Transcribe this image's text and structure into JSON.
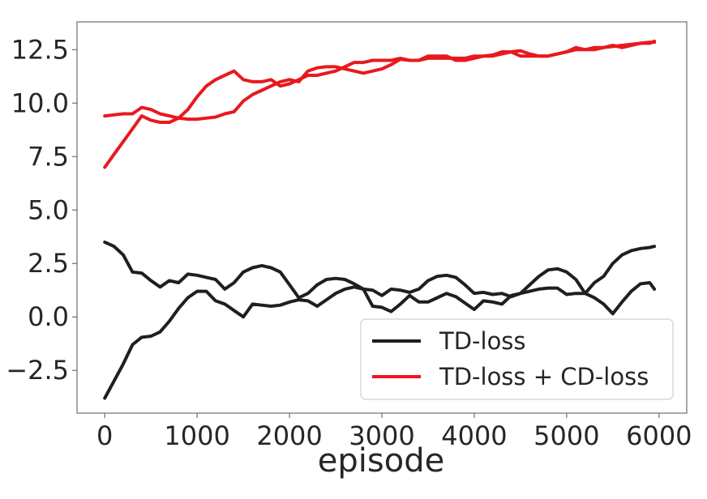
{
  "chart_data": {
    "type": "line",
    "title": "",
    "xlabel": "episode",
    "ylabel": "",
    "xlim": [
      -300,
      6300
    ],
    "ylim": [
      -4.5,
      13.8
    ],
    "xticks": [
      0,
      1000,
      2000,
      3000,
      4000,
      5000,
      6000
    ],
    "xtick_labels": [
      "0",
      "1000",
      "2000",
      "3000",
      "4000",
      "5000",
      "6000"
    ],
    "yticks": [
      -2.5,
      0.0,
      2.5,
      5.0,
      7.5,
      10.0,
      12.5
    ],
    "ytick_labels": [
      "−2.5",
      "0.0",
      "2.5",
      "5.0",
      "7.5",
      "10.0",
      "12.5"
    ],
    "grid": false,
    "legend": "bottom-right",
    "series": [
      {
        "name": "TD-loss",
        "color": "#1f1f1f",
        "x": [
          0,
          100,
          200,
          300,
          400,
          500,
          600,
          700,
          800,
          900,
          1000,
          1100,
          1200,
          1300,
          1400,
          1500,
          1600,
          1700,
          1800,
          1900,
          2000,
          2100,
          2200,
          2300,
          2400,
          2500,
          2600,
          2700,
          2800,
          2900,
          3000,
          3100,
          3200,
          3300,
          3400,
          3500,
          3600,
          3700,
          3800,
          3900,
          4000,
          4100,
          4200,
          4300,
          4400,
          4500,
          4600,
          4700,
          4800,
          4900,
          5000,
          5100,
          5200,
          5300,
          5400,
          5500,
          5600,
          5700,
          5800,
          5900,
          5950
        ],
        "y": [
          3.5,
          3.3,
          2.9,
          2.1,
          2.05,
          1.7,
          1.4,
          1.7,
          1.6,
          2.0,
          1.95,
          1.85,
          1.75,
          1.3,
          1.6,
          2.1,
          2.3,
          2.4,
          2.3,
          2.1,
          1.5,
          0.9,
          1.1,
          1.5,
          1.75,
          1.8,
          1.75,
          1.55,
          1.3,
          1.25,
          1.0,
          1.3,
          1.25,
          1.15,
          1.3,
          1.7,
          1.9,
          1.95,
          1.85,
          1.5,
          1.1,
          1.15,
          1.05,
          1.1,
          0.95,
          1.1,
          1.5,
          1.9,
          2.2,
          2.25,
          2.1,
          1.75,
          1.1,
          0.9,
          0.6,
          0.15,
          0.7,
          1.2,
          1.55,
          1.6,
          1.3
        ]
      },
      {
        "name": "",
        "color": "#1f1f1f",
        "x": [
          0,
          100,
          200,
          300,
          400,
          500,
          600,
          700,
          800,
          900,
          1000,
          1100,
          1200,
          1300,
          1400,
          1500,
          1600,
          1700,
          1800,
          1900,
          2000,
          2100,
          2200,
          2300,
          2400,
          2500,
          2600,
          2700,
          2800,
          2900,
          3000,
          3100,
          3200,
          3300,
          3400,
          3500,
          3600,
          3700,
          3800,
          3900,
          4000,
          4100,
          4200,
          4300,
          4400,
          4500,
          4600,
          4700,
          4800,
          4900,
          5000,
          5100,
          5200,
          5300,
          5400,
          5500,
          5600,
          5700,
          5800,
          5900,
          5950
        ],
        "y": [
          -3.8,
          -3.0,
          -2.2,
          -1.3,
          -0.95,
          -0.9,
          -0.7,
          -0.2,
          0.4,
          0.9,
          1.2,
          1.2,
          0.75,
          0.6,
          0.3,
          0.0,
          0.6,
          0.55,
          0.5,
          0.55,
          0.7,
          0.8,
          0.75,
          0.5,
          0.8,
          1.1,
          1.3,
          1.4,
          1.3,
          0.5,
          0.45,
          0.25,
          0.6,
          1.0,
          0.7,
          0.7,
          0.9,
          1.1,
          0.95,
          0.65,
          0.35,
          0.75,
          0.7,
          0.6,
          1.0,
          1.1,
          1.2,
          1.3,
          1.35,
          1.35,
          1.05,
          1.1,
          1.1,
          1.6,
          1.9,
          2.5,
          2.9,
          3.1,
          3.2,
          3.25,
          3.3
        ]
      },
      {
        "name": "TD-loss + CD-loss",
        "color": "#e8191e",
        "x": [
          0,
          100,
          200,
          300,
          400,
          500,
          600,
          700,
          800,
          900,
          1000,
          1100,
          1200,
          1300,
          1400,
          1500,
          1600,
          1700,
          1800,
          1900,
          2000,
          2100,
          2200,
          2300,
          2400,
          2500,
          2600,
          2700,
          2800,
          2900,
          3000,
          3100,
          3200,
          3300,
          3400,
          3500,
          3600,
          3700,
          3800,
          3900,
          4000,
          4100,
          4200,
          4300,
          4400,
          4500,
          4600,
          4700,
          4800,
          4900,
          5000,
          5100,
          5200,
          5300,
          5400,
          5500,
          5600,
          5700,
          5800,
          5900,
          5950
        ],
        "y": [
          7.0,
          7.6,
          8.2,
          8.8,
          9.4,
          9.2,
          9.1,
          9.1,
          9.3,
          9.7,
          10.3,
          10.8,
          11.1,
          11.3,
          11.5,
          11.1,
          11.0,
          11.0,
          11.1,
          10.8,
          10.9,
          11.1,
          11.3,
          11.3,
          11.4,
          11.5,
          11.7,
          11.9,
          11.9,
          12.0,
          12.0,
          12.0,
          12.1,
          12.0,
          12.0,
          12.2,
          12.2,
          12.2,
          12.0,
          12.0,
          12.1,
          12.2,
          12.2,
          12.3,
          12.4,
          12.2,
          12.2,
          12.2,
          12.2,
          12.3,
          12.4,
          12.6,
          12.5,
          12.5,
          12.6,
          12.7,
          12.6,
          12.7,
          12.8,
          12.8,
          12.9
        ]
      },
      {
        "name": "",
        "color": "#e8191e",
        "x": [
          0,
          100,
          200,
          300,
          400,
          500,
          600,
          700,
          800,
          900,
          1000,
          1100,
          1200,
          1300,
          1400,
          1500,
          1600,
          1700,
          1800,
          1900,
          2000,
          2100,
          2200,
          2300,
          2400,
          2500,
          2600,
          2700,
          2800,
          2900,
          3000,
          3100,
          3200,
          3300,
          3400,
          3500,
          3600,
          3700,
          3800,
          3900,
          4000,
          4100,
          4200,
          4300,
          4400,
          4500,
          4600,
          4700,
          4800,
          4900,
          5000,
          5100,
          5200,
          5300,
          5400,
          5500,
          5600,
          5700,
          5800,
          5900,
          5950
        ],
        "y": [
          9.4,
          9.45,
          9.5,
          9.5,
          9.8,
          9.7,
          9.5,
          9.4,
          9.3,
          9.25,
          9.25,
          9.3,
          9.35,
          9.5,
          9.6,
          10.1,
          10.4,
          10.6,
          10.8,
          11.0,
          11.1,
          11.0,
          11.5,
          11.65,
          11.7,
          11.7,
          11.6,
          11.5,
          11.4,
          11.5,
          11.6,
          11.8,
          12.05,
          12.0,
          12.0,
          12.1,
          12.1,
          12.1,
          12.1,
          12.1,
          12.2,
          12.2,
          12.25,
          12.4,
          12.4,
          12.45,
          12.3,
          12.2,
          12.2,
          12.3,
          12.4,
          12.5,
          12.5,
          12.6,
          12.6,
          12.65,
          12.7,
          12.75,
          12.8,
          12.85,
          12.85
        ]
      }
    ]
  }
}
